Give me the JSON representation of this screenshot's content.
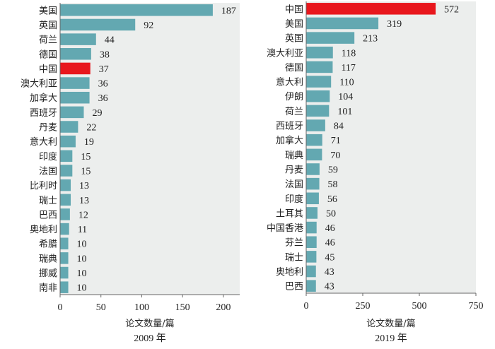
{
  "colors": {
    "bar": "#63a8b1",
    "highlight": "#e8171d",
    "plot_bg": "#eceeed",
    "axis": "#666666"
  },
  "chart_data": [
    {
      "type": "bar",
      "orientation": "horizontal",
      "title": "2009 年",
      "xlabel": "论文数量/篇",
      "ylabel": "",
      "xlim": [
        0,
        220
      ],
      "xticks": [
        0,
        50,
        100,
        150,
        200
      ],
      "highlight": "中国",
      "categories": [
        "美国",
        "英国",
        "荷兰",
        "德国",
        "中国",
        "澳大利亚",
        "加拿大",
        "西班牙",
        "丹麦",
        "意大利",
        "印度",
        "法国",
        "比利时",
        "瑞士",
        "巴西",
        "奥地利",
        "希腊",
        "瑞典",
        "挪威",
        "南非"
      ],
      "values": [
        187,
        92,
        44,
        38,
        37,
        36,
        36,
        29,
        22,
        19,
        15,
        15,
        13,
        13,
        12,
        11,
        10,
        10,
        10,
        10
      ]
    },
    {
      "type": "bar",
      "orientation": "horizontal",
      "title": "2019 年",
      "xlabel": "论文数量/篇",
      "ylabel": "",
      "xlim": [
        0,
        750
      ],
      "xticks": [
        0,
        250,
        500,
        750
      ],
      "highlight": "中国",
      "categories": [
        "中国",
        "美国",
        "英国",
        "澳大利亚",
        "德国",
        "意大利",
        "伊朗",
        "荷兰",
        "西班牙",
        "加拿大",
        "瑞典",
        "丹麦",
        "法国",
        "印度",
        "土耳其",
        "中国香港",
        "芬兰",
        "瑞士",
        "奥地利",
        "巴西"
      ],
      "values": [
        572,
        319,
        213,
        118,
        117,
        110,
        104,
        101,
        84,
        71,
        70,
        59,
        58,
        56,
        50,
        46,
        46,
        45,
        43,
        43
      ]
    }
  ]
}
